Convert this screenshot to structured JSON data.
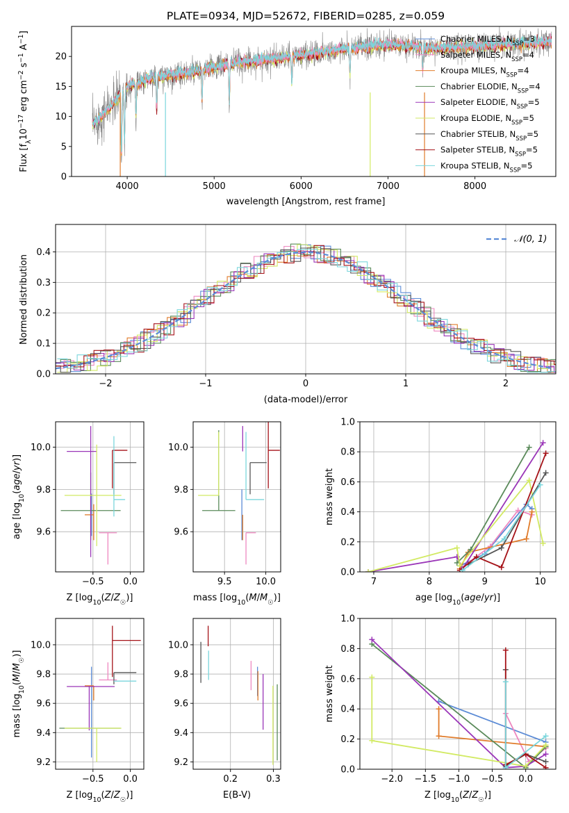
{
  "title": "PLATE=0934, MJD=52672, FIBERID=0285, z=0.059",
  "colors": {
    "Chabrier MILES": "#5b8bd6",
    "Salpeter MILES": "#ee88c0",
    "Kroupa MILES": "#e07b2a",
    "Chabrier ELODIE": "#5a8a5a",
    "Salpeter ELODIE": "#9a35b8",
    "Kroupa ELODIE": "#d2ea63",
    "Chabrier STELIB": "#555555",
    "Salpeter STELIB": "#a51218",
    "Kroupa STELIB": "#7ad6dc",
    "data": "#808080"
  },
  "chart_data": [
    {
      "id": "spectrum",
      "type": "line",
      "xlabel": "wavelength [Angstrom, rest frame]",
      "ylabel": "Flux [f$_\\lambda$10$^{-17}$ erg cm$^{-2}$ s$^{-1}$ A$^{-1}$]",
      "ylabel_main": "Flux [f",
      "ylabel_sub": "λ",
      "ylabel_mid": "10",
      "ylabel_sup1": "−17",
      "ylabel_mid2": " erg cm",
      "ylabel_sup2": "−2",
      "ylabel_mid3": " s",
      "ylabel_sup3": "−1",
      "ylabel_mid4": " A",
      "ylabel_sup4": "−1",
      "ylabel_end": "]",
      "xlim": [
        3360,
        8930
      ],
      "ylim": [
        0,
        25
      ],
      "xticks": [
        4000,
        5000,
        6000,
        7000,
        8000
      ],
      "yticks": [
        0,
        5,
        10,
        15,
        20
      ],
      "data_range": [
        3600,
        8880
      ],
      "continuum": [
        [
          3600,
          8.5
        ],
        [
          3800,
          11.5
        ],
        [
          4000,
          15
        ],
        [
          4300,
          16.5
        ],
        [
          4700,
          17.2
        ],
        [
          5200,
          18.8
        ],
        [
          5800,
          19.8
        ],
        [
          6500,
          21.2
        ],
        [
          7000,
          22
        ],
        [
          7500,
          21.3
        ],
        [
          8000,
          21.7
        ],
        [
          8500,
          22.2
        ],
        [
          8880,
          22.4
        ]
      ],
      "absorption": [
        [
          3934,
          12
        ],
        [
          3969,
          10
        ],
        [
          4102,
          6
        ],
        [
          4340,
          6
        ],
        [
          4861,
          6
        ],
        [
          5175,
          7
        ],
        [
          5893,
          5
        ],
        [
          6563,
          5
        ],
        [
          7400,
          4
        ]
      ],
      "spikes": [
        [
          3920,
          0
        ],
        [
          4440,
          0
        ],
        [
          6795,
          0
        ],
        [
          7420,
          0
        ]
      ],
      "legend": [
        {
          "label": "Chabrier MILES",
          "n": "3"
        },
        {
          "label": "Salpeter MILES",
          "n": "4"
        },
        {
          "label": "Kroupa MILES",
          "n": "4"
        },
        {
          "label": "Chabrier ELODIE",
          "n": "4"
        },
        {
          "label": "Salpeter ELODIE",
          "n": "5"
        },
        {
          "label": "Kroupa ELODIE",
          "n": "5"
        },
        {
          "label": "Chabrier STELIB",
          "n": "5"
        },
        {
          "label": "Salpeter STELIB",
          "n": "5"
        },
        {
          "label": "Kroupa STELIB",
          "n": "5"
        }
      ],
      "nssp_label": "N",
      "nssp_sub": "SSP"
    },
    {
      "id": "residuals",
      "type": "step",
      "xlabel": "(data-model)/error",
      "ylabel": "Normed distribution",
      "xlim": [
        -2.5,
        2.5
      ],
      "ylim": [
        0,
        0.49
      ],
      "xticks": [
        -2,
        -1,
        0,
        1,
        2
      ],
      "xticklabels": [
        "−2",
        "−1",
        "0",
        "1",
        "2"
      ],
      "yticks": [
        0,
        0.1,
        0.2,
        0.3,
        0.4
      ],
      "yticklabels": [
        "0.0",
        "0.1",
        "0.2",
        "0.3",
        "0.4"
      ],
      "bin_width": 0.1,
      "gaussian_label": "𝒩(0, 1)",
      "gaussian_color": "#5b8bd6"
    },
    {
      "id": "age_vs_Z",
      "type": "errorbar",
      "xlabel": "Z [log10(Z/Z☉)]",
      "ylabel": "age [log10(age/yr)]",
      "xlim": [
        -1.0,
        0.18
      ],
      "ylim": [
        9.41,
        10.12
      ],
      "xticks": [
        -0.5,
        0.0
      ],
      "xticklabels": [
        "−0.5",
        "0.0"
      ],
      "yticks": [
        9.6,
        9.8,
        10.0
      ],
      "yticklabels": [
        "9.6",
        "9.8",
        "10.0"
      ],
      "points": [
        {
          "series": "Chabrier MILES",
          "x": -0.52,
          "xerr": [
            0.0,
            0.0
          ],
          "y": 9.68,
          "yerr": [
            0.1,
            0.1
          ]
        },
        {
          "series": "Salpeter MILES",
          "x": -0.3,
          "xerr": [
            0.12,
            0.12
          ],
          "y": 9.595,
          "yerr": [
            0.15,
            0.0
          ]
        },
        {
          "series": "Kroupa MILES",
          "x": -0.49,
          "xerr": [
            0.12,
            0.0
          ],
          "y": 9.68,
          "yerr": [
            0.12,
            0.05
          ]
        },
        {
          "series": "Chabrier ELODIE",
          "x": -0.53,
          "xerr": [
            0.4,
            0.4
          ],
          "y": 9.7,
          "yerr": [
            0.14,
            0.18
          ]
        },
        {
          "series": "Salpeter ELODIE",
          "x": -0.53,
          "xerr": [
            0.32,
            0.08
          ],
          "y": 9.98,
          "yerr": [
            0.5,
            0.12
          ]
        },
        {
          "series": "Kroupa ELODIE",
          "x": -0.45,
          "xerr": [
            0.43,
            0.33
          ],
          "y": 9.772,
          "yerr": [
            0.24,
            0.24
          ]
        },
        {
          "series": "Chabrier STELIB",
          "x": -0.22,
          "xerr": [
            0.0,
            0.3
          ],
          "y": 9.927,
          "yerr": [
            0.15,
            0.0
          ]
        },
        {
          "series": "Salpeter STELIB",
          "x": -0.24,
          "xerr": [
            0.0,
            0.2
          ],
          "y": 9.985,
          "yerr": [
            0.18,
            0.0
          ]
        },
        {
          "series": "Kroupa STELIB",
          "x": -0.22,
          "xerr": [
            0.0,
            0.15
          ],
          "y": 9.752,
          "yerr": [
            0.08,
            0.3
          ]
        }
      ]
    },
    {
      "id": "age_vs_mass",
      "type": "errorbar",
      "xlabel": "mass [log10(M/M☉)]",
      "ylabel": "",
      "xlim": [
        9.12,
        10.18
      ],
      "ylim": [
        9.41,
        10.12
      ],
      "xticks": [
        9.5,
        10.0
      ],
      "xticklabels": [
        "9.5",
        "10.0"
      ],
      "yticks": [
        9.6,
        9.8,
        10.0
      ],
      "yticklabels": [
        "9.6",
        "9.8",
        "10.0"
      ],
      "points": [
        {
          "series": "Chabrier MILES",
          "x": 9.71,
          "xerr": [
            0.0,
            0.0
          ],
          "y": 9.68,
          "yerr": [
            0.12,
            0.12
          ]
        },
        {
          "series": "Salpeter MILES",
          "x": 9.76,
          "xerr": [
            0.0,
            0.12
          ],
          "y": 9.595,
          "yerr": [
            0.15,
            0.0
          ]
        },
        {
          "series": "Kroupa MILES",
          "x": 9.72,
          "xerr": [
            0.0,
            0.0
          ],
          "y": 9.68,
          "yerr": [
            0.12,
            0.0
          ]
        },
        {
          "series": "Chabrier ELODIE",
          "x": 9.43,
          "xerr": [
            0.2,
            0.2
          ],
          "y": 9.7,
          "yerr": [
            0.0,
            0.38
          ]
        },
        {
          "series": "Salpeter ELODIE",
          "x": 9.72,
          "xerr": [
            0.0,
            0.0
          ],
          "y": 9.98,
          "yerr": [
            0.0,
            0.12
          ]
        },
        {
          "series": "Kroupa ELODIE",
          "x": 9.43,
          "xerr": [
            0.25,
            0.0
          ],
          "y": 9.772,
          "yerr": [
            0.0,
            0.3
          ]
        },
        {
          "series": "Chabrier STELIB",
          "x": 9.81,
          "xerr": [
            0.0,
            0.2
          ],
          "y": 9.927,
          "yerr": [
            0.15,
            0.0
          ]
        },
        {
          "series": "Salpeter STELIB",
          "x": 10.03,
          "xerr": [
            0.0,
            0.14
          ],
          "y": 9.985,
          "yerr": [
            0.18,
            0.15
          ]
        },
        {
          "series": "Kroupa STELIB",
          "x": 9.76,
          "xerr": [
            0.0,
            0.22
          ],
          "y": 9.752,
          "yerr": [
            0.0,
            0.32
          ]
        }
      ]
    },
    {
      "id": "weight_vs_age",
      "type": "line",
      "xlabel": "age [log10(age/yr)]",
      "ylabel": "mass weight",
      "xlim": [
        6.75,
        10.28
      ],
      "ylim": [
        0,
        1
      ],
      "xticks": [
        7,
        8,
        9,
        10
      ],
      "xticklabels": [
        "7",
        "8",
        "9",
        "10"
      ],
      "yticks": [
        0,
        0.2,
        0.4,
        0.6,
        0.8,
        1.0
      ],
      "yticklabels": [
        "0.0",
        "0.2",
        "0.4",
        "0.6",
        "0.8",
        "1.0"
      ],
      "series": [
        {
          "name": "Chabrier MILES",
          "x": [
            8.55,
            9.0,
            9.75,
            9.85
          ],
          "y": [
            0.04,
            0.12,
            0.45,
            0.42
          ]
        },
        {
          "name": "Salpeter MILES",
          "x": [
            8.55,
            9.1,
            9.6,
            9.85
          ],
          "y": [
            0.02,
            0.17,
            0.41,
            0.38
          ]
        },
        {
          "name": "Kroupa MILES",
          "x": [
            8.55,
            8.7,
            9.75,
            9.85
          ],
          "y": [
            0.02,
            0.13,
            0.22,
            0.4
          ]
        },
        {
          "name": "Chabrier ELODIE",
          "x": [
            8.5,
            8.75,
            9.8
          ],
          "y": [
            0.06,
            0.15,
            0.83
          ]
        },
        {
          "name": "Salpeter ELODIE",
          "x": [
            6.9,
            8.5,
            8.6,
            10.05
          ],
          "y": [
            0.0,
            0.1,
            0.02,
            0.86
          ]
        },
        {
          "name": "Kroupa ELODIE",
          "x": [
            6.9,
            8.5,
            8.55,
            9.8,
            10.05
          ],
          "y": [
            0.0,
            0.16,
            0.04,
            0.61,
            0.19
          ]
        },
        {
          "name": "Chabrier STELIB",
          "x": [
            8.7,
            9.3,
            10.1
          ],
          "y": [
            0.05,
            0.16,
            0.66
          ]
        },
        {
          "name": "Salpeter STELIB",
          "x": [
            8.55,
            8.85,
            9.3,
            10.1
          ],
          "y": [
            0.01,
            0.1,
            0.03,
            0.79
          ]
        },
        {
          "name": "Kroupa STELIB",
          "x": [
            8.6,
            9.35,
            10.0
          ],
          "y": [
            0.01,
            0.22,
            0.58
          ]
        }
      ]
    },
    {
      "id": "mass_vs_Z",
      "type": "errorbar",
      "xlabel": "Z [log10(Z/Z☉)]",
      "ylabel": "mass [log10(M/M☉)]",
      "xlim": [
        -1.0,
        0.18
      ],
      "ylim": [
        9.15,
        10.18
      ],
      "xticks": [
        -0.5,
        0.0
      ],
      "xticklabels": [
        "−0.5",
        "0.0"
      ],
      "yticks": [
        9.2,
        9.4,
        9.6,
        9.8,
        10.0
      ],
      "yticklabels": [
        "9.2",
        "9.4",
        "9.6",
        "9.8",
        "10.0"
      ],
      "points": [
        {
          "series": "Chabrier MILES",
          "x": -0.52,
          "xerr": [
            0.0,
            0.0
          ],
          "y": 9.71,
          "yerr": [
            0.48,
            0.14
          ]
        },
        {
          "series": "Salpeter MILES",
          "x": -0.3,
          "xerr": [
            0.12,
            0.12
          ],
          "y": 9.76,
          "yerr": [
            0.0,
            0.12
          ]
        },
        {
          "series": "Kroupa MILES",
          "x": -0.49,
          "xerr": [
            0.12,
            0.0
          ],
          "y": 9.72,
          "yerr": [
            0.1,
            0.0
          ]
        },
        {
          "series": "Chabrier ELODIE",
          "x": -0.53,
          "xerr": [
            0.42,
            0.4
          ],
          "y": 9.43,
          "yerr": [
            0.0,
            0.0
          ]
        },
        {
          "series": "Salpeter ELODIE",
          "x": -0.55,
          "xerr": [
            0.3,
            0.34
          ],
          "y": 9.715,
          "yerr": [
            0.3,
            0.0
          ]
        },
        {
          "series": "Kroupa ELODIE",
          "x": -0.45,
          "xerr": [
            0.43,
            0.33
          ],
          "y": 9.43,
          "yerr": [
            0.23,
            0.0
          ]
        },
        {
          "series": "Chabrier STELIB",
          "x": -0.22,
          "xerr": [
            0.0,
            0.3
          ],
          "y": 9.81,
          "yerr": [
            0.08,
            0.0
          ]
        },
        {
          "series": "Salpeter STELIB",
          "x": -0.24,
          "xerr": [
            0.0,
            0.38
          ],
          "y": 10.03,
          "yerr": [
            0.25,
            0.1
          ]
        },
        {
          "series": "Kroupa STELIB",
          "x": -0.22,
          "xerr": [
            0.0,
            0.3
          ],
          "y": 9.752,
          "yerr": [
            0.0,
            0.0
          ]
        }
      ]
    },
    {
      "id": "mass_vs_EBV",
      "type": "errorbar",
      "xlabel": "E(B-V)",
      "ylabel": "",
      "xlim": [
        0.113,
        0.317
      ],
      "ylim": [
        9.15,
        10.18
      ],
      "xticks": [
        0.2,
        0.3
      ],
      "xticklabels": [
        "0.2",
        "0.3"
      ],
      "yticks": [
        9.2,
        9.4,
        9.6,
        9.8,
        10.0
      ],
      "yticklabels": [
        "9.2",
        "9.4",
        "9.6",
        "9.8",
        "10.0"
      ],
      "points": [
        {
          "series": "Chabrier STELIB",
          "x": 0.131,
          "y": 9.88,
          "yerr": [
            0.14,
            0.14
          ]
        },
        {
          "series": "Salpeter STELIB",
          "x": 0.148,
          "y": 10.06,
          "yerr": [
            0.07,
            0.07
          ]
        },
        {
          "series": "Kroupa STELIB",
          "x": 0.149,
          "y": 9.86,
          "yerr": [
            0.1,
            0.1
          ]
        },
        {
          "series": "Salpeter MILES",
          "x": 0.248,
          "y": 9.79,
          "yerr": [
            0.1,
            0.1
          ]
        },
        {
          "series": "Chabrier MILES",
          "x": 0.263,
          "y": 9.75,
          "yerr": [
            0.1,
            0.1
          ]
        },
        {
          "series": "Kroupa MILES",
          "x": 0.264,
          "y": 9.72,
          "yerr": [
            0.1,
            0.1
          ]
        },
        {
          "series": "Salpeter ELODIE",
          "x": 0.276,
          "y": 9.61,
          "yerr": [
            0.19,
            0.19
          ]
        },
        {
          "series": "Kroupa ELODIE",
          "x": 0.299,
          "y": 9.45,
          "yerr": [
            0.27,
            0.27
          ]
        },
        {
          "series": "Chabrier ELODIE",
          "x": 0.309,
          "y": 9.47,
          "yerr": [
            0.26,
            0.26
          ]
        }
      ]
    },
    {
      "id": "weight_vs_Z",
      "type": "line",
      "xlabel": "Z [log10(Z/Z☉)]",
      "ylabel": "mass weight",
      "xlim": [
        -2.48,
        0.45
      ],
      "ylim": [
        0,
        1
      ],
      "xticks": [
        -2.0,
        -1.5,
        -1.0,
        -0.5,
        0.0
      ],
      "xticklabels": [
        "−2.0",
        "−1.5",
        "−1.0",
        "−0.5",
        "0.0"
      ],
      "yticks": [
        0,
        0.2,
        0.4,
        0.6,
        0.8,
        1.0
      ],
      "yticklabels": [
        "0.0",
        "0.2",
        "0.4",
        "0.6",
        "0.8",
        "1.0"
      ],
      "series": [
        {
          "name": "Chabrier MILES",
          "x": [
            -1.3,
            0.3
          ],
          "y": [
            0.45,
            0.18
          ]
        },
        {
          "name": "Salpeter MILES",
          "x": [
            -0.3,
            0.05,
            0.3
          ],
          "y": [
            0.37,
            0.05,
            0.14
          ]
        },
        {
          "name": "Kroupa MILES",
          "x": [
            -1.3,
            -1.3,
            0.3
          ],
          "y": [
            0.4,
            0.22,
            0.15
          ]
        },
        {
          "name": "Chabrier ELODIE",
          "x": [
            -2.3,
            0.0,
            0.3
          ],
          "y": [
            0.83,
            0.01,
            0.15
          ]
        },
        {
          "name": "Salpeter ELODIE",
          "x": [
            -2.3,
            -0.3,
            0.0,
            0.3
          ],
          "y": [
            0.86,
            0.01,
            0.02,
            0.1
          ]
        },
        {
          "name": "Kroupa ELODIE",
          "x": [
            -2.3,
            -2.3,
            0.0,
            0.3
          ],
          "y": [
            0.61,
            0.19,
            0.02,
            0.16
          ]
        },
        {
          "name": "Chabrier STELIB",
          "x": [
            -0.3,
            -0.3,
            0.0,
            0.3
          ],
          "y": [
            0.66,
            0.02,
            0.1,
            0.05
          ]
        },
        {
          "name": "Salpeter STELIB",
          "x": [
            -0.3,
            -0.3,
            0.0,
            0.3
          ],
          "y": [
            0.79,
            0.03,
            0.1,
            0.01
          ]
        },
        {
          "name": "Kroupa STELIB",
          "x": [
            -0.3,
            -0.3,
            0.3
          ],
          "y": [
            0.58,
            0.01,
            0.22
          ]
        }
      ]
    }
  ]
}
